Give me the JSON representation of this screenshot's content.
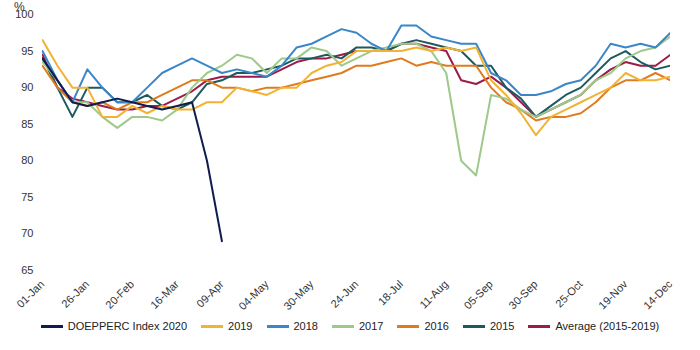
{
  "chart_data": {
    "type": "line",
    "y_label": "%",
    "categories": [
      "01-Jan",
      null,
      null,
      "26-Jan",
      null,
      null,
      "20-Feb",
      null,
      null,
      "16-Mar",
      null,
      null,
      "09-Apr",
      null,
      null,
      "04-May",
      null,
      null,
      "30-May",
      null,
      null,
      "24-Jun",
      null,
      null,
      "18-Jul",
      null,
      null,
      "11-Aug",
      null,
      null,
      "05-Sep",
      null,
      null,
      "30-Sep",
      null,
      null,
      "25-Oct",
      null,
      null,
      "19-Nov",
      null,
      null,
      "14-Dec"
    ],
    "series": [
      {
        "name": "DOEPPERC Index 2020",
        "color": "#0f1c4d",
        "values": [
          94,
          91,
          88,
          87.5,
          88,
          88.5,
          88,
          87.5,
          87,
          87.5,
          88,
          80,
          69,
          null,
          null,
          null,
          null,
          null,
          null,
          null,
          null,
          null,
          null,
          null,
          null,
          null,
          null,
          null,
          null,
          null,
          null,
          null,
          null,
          null,
          null,
          null,
          null,
          null,
          null,
          null,
          null,
          null,
          null
        ]
      },
      {
        "name": "2019",
        "color": "#f2b233",
        "values": [
          96.5,
          93,
          90,
          90,
          86,
          86,
          87.5,
          86.5,
          87.5,
          87,
          87,
          88,
          88,
          90,
          89.5,
          89,
          90,
          90,
          92,
          93,
          93.5,
          95,
          95,
          95,
          95,
          95.5,
          95,
          95.5,
          95,
          95.5,
          91,
          89,
          86.5,
          83.5,
          86,
          87,
          88,
          89,
          90,
          92,
          91,
          91,
          91.5
        ]
      },
      {
        "name": "2018",
        "color": "#3a86c8",
        "values": [
          95,
          91,
          88,
          92.5,
          90,
          88,
          88,
          90,
          92,
          93,
          94,
          93,
          92,
          92.5,
          92,
          91.5,
          93,
          95.5,
          96,
          97,
          98,
          97.5,
          96,
          95,
          98.5,
          98.5,
          97,
          96.5,
          96,
          96,
          92,
          91,
          89,
          89,
          89.5,
          90.5,
          91,
          93,
          96,
          95.5,
          96,
          95.5,
          97.5
        ]
      },
      {
        "name": "2017",
        "color": "#9ec98a",
        "values": [
          93.5,
          91,
          88,
          88,
          86,
          84.5,
          86,
          86,
          85.5,
          87,
          90,
          92,
          93,
          94.5,
          94,
          92,
          94,
          94,
          95.5,
          95,
          93,
          94,
          95,
          95.5,
          96,
          96,
          95,
          92,
          80,
          78,
          89,
          88.5,
          87,
          86,
          87,
          88,
          89,
          91,
          92,
          94,
          95,
          95.5,
          97
        ]
      },
      {
        "name": "2016",
        "color": "#e07b1d",
        "values": [
          93,
          90,
          88,
          87.5,
          88,
          87,
          88,
          88,
          89,
          90,
          91,
          91,
          90,
          90,
          89.5,
          90,
          90,
          90.5,
          91,
          91.5,
          92,
          93,
          93,
          93.5,
          94,
          93,
          93.5,
          93,
          93,
          93,
          90,
          88,
          87,
          85.5,
          86,
          86,
          86.5,
          88,
          90,
          91,
          91,
          92,
          91
        ]
      },
      {
        "name": "2015",
        "color": "#1d5a5e",
        "values": [
          94,
          90,
          86,
          90,
          90,
          88,
          88,
          89,
          87.5,
          87,
          88,
          90.5,
          91,
          92,
          92,
          92.5,
          93,
          94,
          94,
          94.5,
          94,
          95.5,
          95.5,
          95,
          96,
          96.5,
          96,
          95.5,
          95,
          93,
          93,
          90,
          88.5,
          86,
          87.5,
          89,
          90,
          92,
          94,
          95,
          93.5,
          92.5,
          93
        ]
      },
      {
        "name": "Average (2015-2019)",
        "color": "#9b1b4a",
        "values": [
          94.5,
          90,
          88.5,
          88,
          87.5,
          87,
          87,
          87.5,
          87.5,
          88.5,
          89.5,
          91,
          91.5,
          91.5,
          91.5,
          91.5,
          92.5,
          93.5,
          94,
          94,
          94.5,
          95,
          95,
          95,
          96,
          96,
          95.5,
          95,
          91,
          90.5,
          91.5,
          90,
          88,
          86,
          87,
          88,
          89,
          91,
          92.5,
          93.5,
          93,
          93,
          94.5
        ]
      }
    ],
    "ylim": [
      65,
      100
    ],
    "yticks": [
      65,
      70,
      75,
      80,
      85,
      90,
      95,
      100
    ],
    "grid": false,
    "legend": "bottom"
  }
}
